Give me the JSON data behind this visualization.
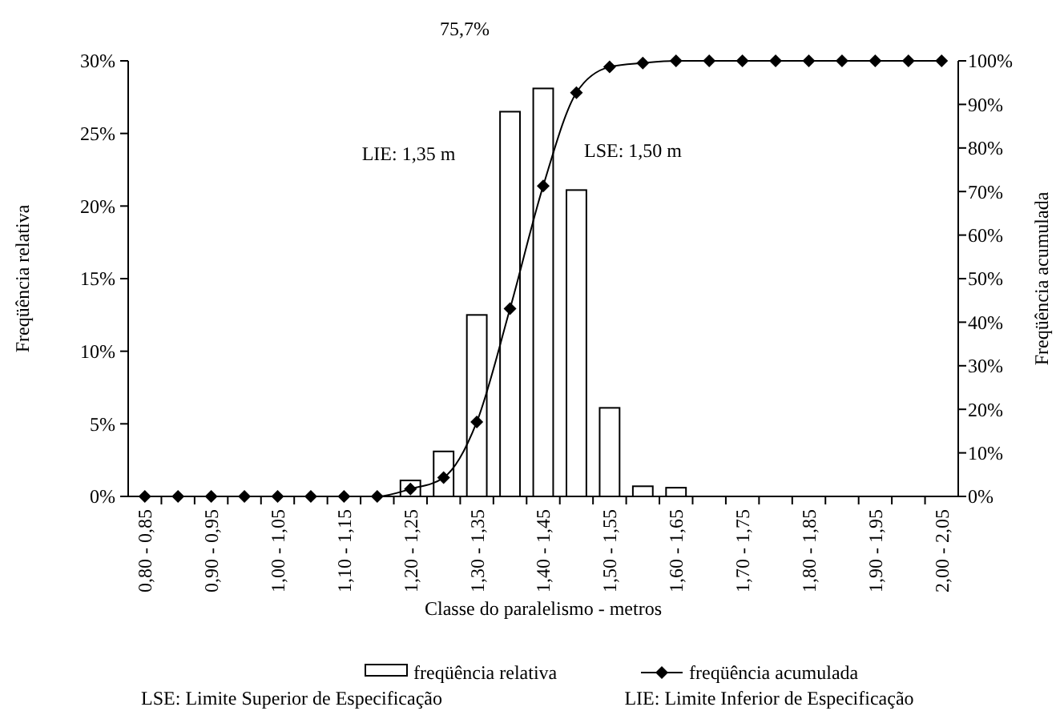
{
  "chart_data": {
    "type": "bar",
    "xlabel": "Classe do paralelismo - metros",
    "ylabel": "Freqüência relativa",
    "y2label": "Freqüência acumulada",
    "categories": [
      "0,80 - 0,85",
      null,
      "0,90 - 0,95",
      null,
      "1,00 - 1,05",
      null,
      "1,10 - 1,15",
      null,
      "1,20 - 1,25",
      null,
      "1,30 - 1,35",
      null,
      "1,40 - 1,45",
      null,
      "1,50 - 1,55",
      null,
      "1,60 - 1,65",
      null,
      "1,70 - 1,75",
      null,
      "1,80 - 1,85",
      null,
      "1,90 - 1,95",
      null,
      "2,00 - 2,05"
    ],
    "series": [
      {
        "name": "freqüência relativa",
        "color": "#ffffff",
        "values": [
          0,
          0,
          0,
          0,
          0,
          0,
          0,
          0,
          1.1,
          3.1,
          12.5,
          26.5,
          28.1,
          21.1,
          6.1,
          0.7,
          0.6,
          0,
          0,
          0,
          0,
          0,
          0,
          0,
          0
        ]
      },
      {
        "name": "freqüência acumulada",
        "type": "line",
        "axis": "y2",
        "color": "#000000",
        "marker": "diamond",
        "values": [
          0,
          0,
          0,
          0,
          0,
          0,
          0,
          0,
          1.7,
          4.3,
          17.1,
          43.1,
          71.3,
          92.7,
          98.6,
          99.5,
          100,
          100,
          100,
          100,
          100,
          100,
          100,
          100,
          100
        ]
      }
    ],
    "ylim": [
      0,
      30
    ],
    "yticks": [
      {
        "value": 0,
        "label": "0%"
      },
      {
        "value": 5,
        "label": "5%"
      },
      {
        "value": 10,
        "label": "10%"
      },
      {
        "value": 15,
        "label": "15%"
      },
      {
        "value": 20,
        "label": "20%"
      },
      {
        "value": 25,
        "label": "25%"
      },
      {
        "value": 30,
        "label": "30%"
      }
    ],
    "y2lim": [
      0,
      100
    ],
    "y2ticks": [
      {
        "value": 0,
        "label": "0%"
      },
      {
        "value": 10,
        "label": "10%"
      },
      {
        "value": 20,
        "label": "20%"
      },
      {
        "value": 30,
        "label": "30%"
      },
      {
        "value": 40,
        "label": "40%"
      },
      {
        "value": 50,
        "label": "50%"
      },
      {
        "value": 60,
        "label": "60%"
      },
      {
        "value": 70,
        "label": "70%"
      },
      {
        "value": 80,
        "label": "80%"
      },
      {
        "value": 90,
        "label": "90%"
      },
      {
        "value": 100,
        "label": "100%"
      }
    ],
    "annotations": [
      "75,7%",
      "LIE: 1,35 m",
      "LSE: 1,50 m",
      "LSE: Limite Superior de Especificação",
      "LIE: Limite Inferior de Especificação"
    ],
    "legend": "bottom",
    "grid": false
  }
}
